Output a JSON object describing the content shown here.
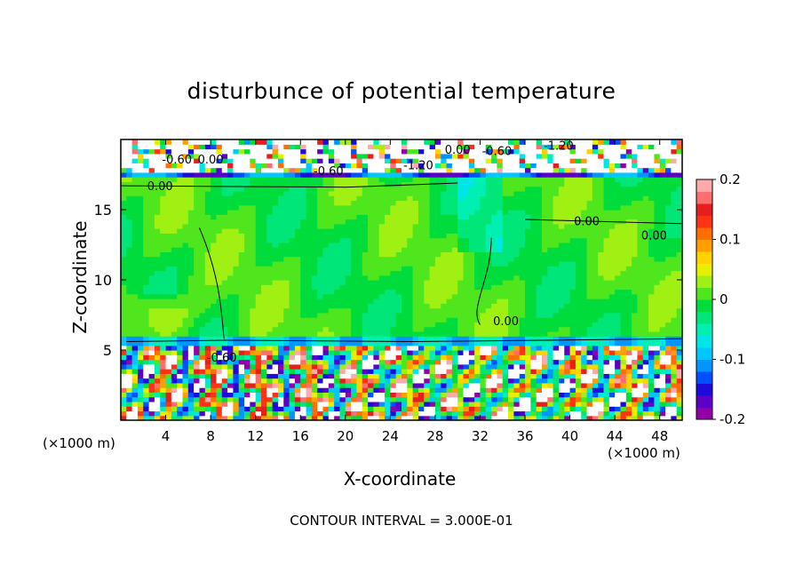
{
  "chart_data": {
    "type": "heatmap",
    "title": "disturbunce of potential temperature",
    "xlabel": "X-coordinate",
    "ylabel": "Z-coordinate",
    "x_unit": "(×1000 m)",
    "xlim": [
      0,
      50
    ],
    "ylim": [
      0,
      20
    ],
    "x_ticks": [
      4,
      8,
      12,
      16,
      20,
      24,
      28,
      32,
      36,
      40,
      44,
      48
    ],
    "y_ticks": [
      5,
      10,
      15
    ],
    "colorbar": {
      "range": [
        -0.2,
        0.2
      ],
      "ticks": [
        {
          "value": 0.2,
          "label": "0.2"
        },
        {
          "value": 0.1,
          "label": "0.1"
        },
        {
          "value": 0,
          "label": "0"
        },
        {
          "value": -0.1,
          "label": "-0.1"
        },
        {
          "value": -0.2,
          "label": "-0.2"
        }
      ],
      "colors": [
        "#9400a8",
        "#5a00c8",
        "#1e0adc",
        "#0050ff",
        "#0096ff",
        "#00c8ff",
        "#00e6e6",
        "#00f0b4",
        "#00e678",
        "#00dc3c",
        "#50e61e",
        "#a0f014",
        "#e6f000",
        "#ffd200",
        "#ffa000",
        "#ff6e00",
        "#ff3214",
        "#e61e1e",
        "#ff6e6e",
        "#ffaaaa"
      ]
    },
    "contour_labels": [
      {
        "x": 3.5,
        "z": 16.7,
        "text": "0.00"
      },
      {
        "x": 41.5,
        "z": 14.2,
        "text": "0.00"
      },
      {
        "x": 47.5,
        "z": 13.2,
        "text": "0.00"
      },
      {
        "x": 34.3,
        "z": 7.1,
        "text": "0.00"
      },
      {
        "x": 5.0,
        "z": 18.6,
        "text": "-0.60"
      },
      {
        "x": 8.0,
        "z": 18.6,
        "text": "0.00"
      },
      {
        "x": 18.5,
        "z": 17.8,
        "text": "-0.60"
      },
      {
        "x": 26.5,
        "z": 18.2,
        "text": "-1.20"
      },
      {
        "x": 30.0,
        "z": 19.3,
        "text": "0.00"
      },
      {
        "x": 33.5,
        "z": 19.2,
        "text": "-0.60"
      },
      {
        "x": 39.0,
        "z": 19.6,
        "text": "-1.20"
      },
      {
        "x": 9.0,
        "z": 4.5,
        "text": "-0.60"
      }
    ],
    "field_description_regions": {
      "stratosphere_band_z": [
        17.2,
        20
      ],
      "troposphere_mean": 0.0,
      "boundary_layer_z": [
        0,
        5.2
      ],
      "inversion_z": 5.3
    },
    "contour_interval": "CONTOUR INTERVAL = 3.000E-01"
  }
}
